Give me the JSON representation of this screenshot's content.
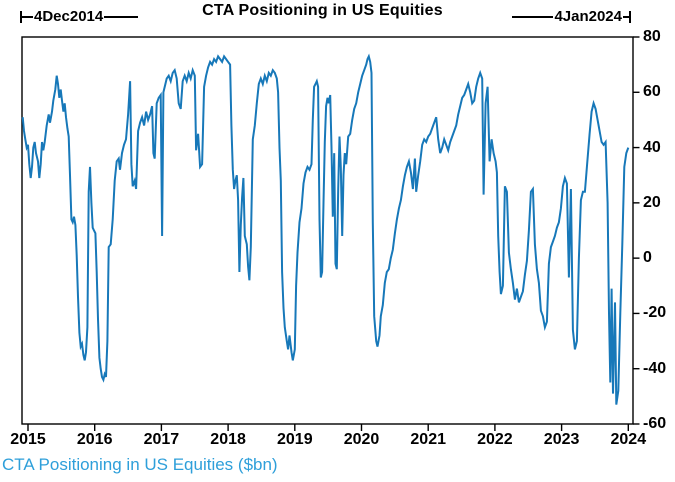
{
  "chart_data": {
    "type": "line",
    "title": "CTA Positioning in US Equities",
    "caption": "CTA Positioning in US Equities ($bn)",
    "range_annotations": {
      "start": {
        "label": "4Dec2014"
      },
      "end": {
        "label": "4Jan2024"
      }
    },
    "x_tick_labels": [
      "2015",
      "2016",
      "2017",
      "2018",
      "2019",
      "2020",
      "2021",
      "2022",
      "2023",
      "2024"
    ],
    "y_ticks": [
      80,
      60,
      40,
      20,
      0,
      -20,
      -40,
      -60
    ],
    "ylim": [
      -60,
      80
    ],
    "xlim_years": [
      2014.91,
      2024.07
    ],
    "ylabel_side": "right",
    "grid": false,
    "legend": "none",
    "line_color": "#1778b9",
    "axis_color": "#000000",
    "caption_color": "#2E9FDA",
    "series_name": "CTA Positioning in US Equities ($bn)",
    "points": [
      [
        2014.92,
        51
      ],
      [
        2014.94,
        46
      ],
      [
        2014.96,
        43
      ],
      [
        2014.98,
        40
      ],
      [
        2015.0,
        41
      ],
      [
        2015.02,
        34
      ],
      [
        2015.04,
        29
      ],
      [
        2015.06,
        33
      ],
      [
        2015.08,
        40
      ],
      [
        2015.1,
        42
      ],
      [
        2015.12,
        38
      ],
      [
        2015.15,
        35
      ],
      [
        2015.17,
        29
      ],
      [
        2015.19,
        34
      ],
      [
        2015.21,
        42
      ],
      [
        2015.23,
        39
      ],
      [
        2015.25,
        42
      ],
      [
        2015.28,
        48
      ],
      [
        2015.31,
        52
      ],
      [
        2015.33,
        49
      ],
      [
        2015.36,
        53
      ],
      [
        2015.38,
        57
      ],
      [
        2015.41,
        61
      ],
      [
        2015.43,
        66
      ],
      [
        2015.45,
        63
      ],
      [
        2015.47,
        58
      ],
      [
        2015.49,
        61
      ],
      [
        2015.51,
        57
      ],
      [
        2015.53,
        53
      ],
      [
        2015.55,
        56
      ],
      [
        2015.57,
        51
      ],
      [
        2015.59,
        47
      ],
      [
        2015.61,
        44
      ],
      [
        2015.63,
        30
      ],
      [
        2015.65,
        14
      ],
      [
        2015.67,
        13
      ],
      [
        2015.69,
        15
      ],
      [
        2015.71,
        12
      ],
      [
        2015.73,
        1
      ],
      [
        2015.75,
        -14
      ],
      [
        2015.77,
        -27
      ],
      [
        2015.79,
        -32
      ],
      [
        2015.81,
        -31
      ],
      [
        2015.83,
        -35
      ],
      [
        2015.85,
        -37
      ],
      [
        2015.87,
        -34
      ],
      [
        2015.89,
        -25
      ],
      [
        2015.91,
        24
      ],
      [
        2015.93,
        33
      ],
      [
        2015.95,
        20
      ],
      [
        2015.97,
        11
      ],
      [
        2015.99,
        10
      ],
      [
        2016.01,
        9
      ],
      [
        2016.03,
        -5
      ],
      [
        2016.05,
        -22
      ],
      [
        2016.07,
        -36
      ],
      [
        2016.09,
        -40
      ],
      [
        2016.11,
        -43
      ],
      [
        2016.13,
        -44
      ],
      [
        2016.15,
        -42
      ],
      [
        2016.17,
        -43
      ],
      [
        2016.19,
        -30
      ],
      [
        2016.21,
        4
      ],
      [
        2016.24,
        5
      ],
      [
        2016.27,
        14
      ],
      [
        2016.3,
        28
      ],
      [
        2016.33,
        35
      ],
      [
        2016.36,
        36
      ],
      [
        2016.38,
        32
      ],
      [
        2016.41,
        38
      ],
      [
        2016.44,
        41
      ],
      [
        2016.47,
        43
      ],
      [
        2016.5,
        52
      ],
      [
        2016.53,
        64
      ],
      [
        2016.55,
        34
      ],
      [
        2016.57,
        26
      ],
      [
        2016.6,
        28
      ],
      [
        2016.62,
        25
      ],
      [
        2016.65,
        46
      ],
      [
        2016.68,
        49
      ],
      [
        2016.71,
        51
      ],
      [
        2016.74,
        48
      ],
      [
        2016.77,
        53
      ],
      [
        2016.8,
        50
      ],
      [
        2016.83,
        52
      ],
      [
        2016.86,
        55
      ],
      [
        2016.88,
        38
      ],
      [
        2016.9,
        36
      ],
      [
        2016.93,
        56
      ],
      [
        2016.96,
        58
      ],
      [
        2016.99,
        59
      ],
      [
        2017.01,
        8
      ],
      [
        2017.03,
        60
      ],
      [
        2017.06,
        63
      ],
      [
        2017.08,
        65
      ],
      [
        2017.11,
        66
      ],
      [
        2017.14,
        64
      ],
      [
        2017.17,
        67
      ],
      [
        2017.2,
        68
      ],
      [
        2017.23,
        65
      ],
      [
        2017.26,
        56
      ],
      [
        2017.29,
        54
      ],
      [
        2017.32,
        64
      ],
      [
        2017.35,
        66
      ],
      [
        2017.38,
        64
      ],
      [
        2017.41,
        67
      ],
      [
        2017.44,
        65
      ],
      [
        2017.47,
        68
      ],
      [
        2017.5,
        66
      ],
      [
        2017.52,
        39
      ],
      [
        2017.55,
        45
      ],
      [
        2017.58,
        33
      ],
      [
        2017.61,
        34
      ],
      [
        2017.64,
        62
      ],
      [
        2017.67,
        66
      ],
      [
        2017.7,
        69
      ],
      [
        2017.73,
        71
      ],
      [
        2017.76,
        70
      ],
      [
        2017.79,
        72
      ],
      [
        2017.82,
        71
      ],
      [
        2017.85,
        73
      ],
      [
        2017.88,
        72
      ],
      [
        2017.91,
        71
      ],
      [
        2017.94,
        73
      ],
      [
        2017.97,
        72
      ],
      [
        2018.0,
        71
      ],
      [
        2018.03,
        70
      ],
      [
        2018.05,
        48
      ],
      [
        2018.07,
        32
      ],
      [
        2018.09,
        25
      ],
      [
        2018.11,
        28
      ],
      [
        2018.13,
        30
      ],
      [
        2018.15,
        21
      ],
      [
        2018.17,
        -5
      ],
      [
        2018.19,
        12
      ],
      [
        2018.21,
        22
      ],
      [
        2018.23,
        29
      ],
      [
        2018.25,
        8
      ],
      [
        2018.28,
        5
      ],
      [
        2018.3,
        -3
      ],
      [
        2018.32,
        -8
      ],
      [
        2018.34,
        4
      ],
      [
        2018.37,
        43
      ],
      [
        2018.4,
        48
      ],
      [
        2018.43,
        56
      ],
      [
        2018.46,
        63
      ],
      [
        2018.49,
        65
      ],
      [
        2018.52,
        63
      ],
      [
        2018.55,
        66
      ],
      [
        2018.58,
        64
      ],
      [
        2018.61,
        67
      ],
      [
        2018.64,
        66
      ],
      [
        2018.67,
        68
      ],
      [
        2018.7,
        67
      ],
      [
        2018.73,
        65
      ],
      [
        2018.75,
        60
      ],
      [
        2018.77,
        40
      ],
      [
        2018.79,
        28
      ],
      [
        2018.81,
        -5
      ],
      [
        2018.83,
        -18
      ],
      [
        2018.85,
        -25
      ],
      [
        2018.88,
        -30
      ],
      [
        2018.9,
        -33
      ],
      [
        2018.92,
        -28
      ],
      [
        2018.95,
        -34
      ],
      [
        2018.97,
        -37
      ],
      [
        2019.0,
        -33
      ],
      [
        2019.02,
        -10
      ],
      [
        2019.04,
        2
      ],
      [
        2019.07,
        13
      ],
      [
        2019.1,
        18
      ],
      [
        2019.13,
        27
      ],
      [
        2019.16,
        31
      ],
      [
        2019.19,
        33
      ],
      [
        2019.22,
        32
      ],
      [
        2019.25,
        34
      ],
      [
        2019.27,
        50
      ],
      [
        2019.29,
        62
      ],
      [
        2019.31,
        63
      ],
      [
        2019.33,
        64
      ],
      [
        2019.35,
        62
      ],
      [
        2019.37,
        14
      ],
      [
        2019.39,
        -7
      ],
      [
        2019.41,
        -5
      ],
      [
        2019.43,
        20
      ],
      [
        2019.45,
        42
      ],
      [
        2019.47,
        55
      ],
      [
        2019.49,
        58
      ],
      [
        2019.51,
        56
      ],
      [
        2019.53,
        59
      ],
      [
        2019.55,
        40
      ],
      [
        2019.57,
        15
      ],
      [
        2019.59,
        38
      ],
      [
        2019.61,
        -2
      ],
      [
        2019.63,
        -4
      ],
      [
        2019.65,
        25
      ],
      [
        2019.67,
        44
      ],
      [
        2019.69,
        33
      ],
      [
        2019.71,
        8
      ],
      [
        2019.73,
        30
      ],
      [
        2019.75,
        38
      ],
      [
        2019.77,
        34
      ],
      [
        2019.8,
        44
      ],
      [
        2019.83,
        45
      ],
      [
        2019.86,
        50
      ],
      [
        2019.89,
        54
      ],
      [
        2019.92,
        56
      ],
      [
        2019.95,
        60
      ],
      [
        2019.98,
        63
      ],
      [
        2020.01,
        66
      ],
      [
        2020.04,
        68
      ],
      [
        2020.07,
        70
      ],
      [
        2020.09,
        72
      ],
      [
        2020.11,
        73
      ],
      [
        2020.13,
        71
      ],
      [
        2020.15,
        67
      ],
      [
        2020.17,
        13
      ],
      [
        2020.19,
        -21
      ],
      [
        2020.22,
        -30
      ],
      [
        2020.24,
        -32
      ],
      [
        2020.27,
        -28
      ],
      [
        2020.29,
        -21
      ],
      [
        2020.32,
        -17
      ],
      [
        2020.35,
        -9
      ],
      [
        2020.38,
        -5
      ],
      [
        2020.41,
        -4
      ],
      [
        2020.44,
        0
      ],
      [
        2020.47,
        3
      ],
      [
        2020.5,
        9
      ],
      [
        2020.53,
        14
      ],
      [
        2020.56,
        18
      ],
      [
        2020.59,
        21
      ],
      [
        2020.62,
        26
      ],
      [
        2020.65,
        30
      ],
      [
        2020.68,
        33
      ],
      [
        2020.71,
        35
      ],
      [
        2020.74,
        31
      ],
      [
        2020.77,
        25
      ],
      [
        2020.8,
        36
      ],
      [
        2020.82,
        24
      ],
      [
        2020.85,
        30
      ],
      [
        2020.88,
        35
      ],
      [
        2020.91,
        41
      ],
      [
        2020.94,
        43
      ],
      [
        2020.97,
        42
      ],
      [
        2021.0,
        44
      ],
      [
        2021.03,
        45
      ],
      [
        2021.06,
        47
      ],
      [
        2021.09,
        49
      ],
      [
        2021.12,
        51
      ],
      [
        2021.15,
        43
      ],
      [
        2021.18,
        38
      ],
      [
        2021.21,
        40
      ],
      [
        2021.24,
        43
      ],
      [
        2021.27,
        41
      ],
      [
        2021.3,
        39
      ],
      [
        2021.33,
        42
      ],
      [
        2021.36,
        44
      ],
      [
        2021.39,
        46
      ],
      [
        2021.42,
        48
      ],
      [
        2021.45,
        52
      ],
      [
        2021.48,
        55
      ],
      [
        2021.51,
        58
      ],
      [
        2021.54,
        59
      ],
      [
        2021.57,
        61
      ],
      [
        2021.6,
        63
      ],
      [
        2021.63,
        60
      ],
      [
        2021.66,
        56
      ],
      [
        2021.69,
        57
      ],
      [
        2021.72,
        62
      ],
      [
        2021.75,
        65
      ],
      [
        2021.78,
        67
      ],
      [
        2021.81,
        65
      ],
      [
        2021.83,
        23
      ],
      [
        2021.86,
        56
      ],
      [
        2021.89,
        62
      ],
      [
        2021.92,
        35
      ],
      [
        2021.95,
        43
      ],
      [
        2021.98,
        38
      ],
      [
        2022.01,
        35
      ],
      [
        2022.03,
        31
      ],
      [
        2022.05,
        8
      ],
      [
        2022.07,
        -5
      ],
      [
        2022.09,
        -13
      ],
      [
        2022.12,
        -10
      ],
      [
        2022.15,
        26
      ],
      [
        2022.18,
        24
      ],
      [
        2022.21,
        2
      ],
      [
        2022.24,
        -4
      ],
      [
        2022.27,
        -9
      ],
      [
        2022.3,
        -15
      ],
      [
        2022.33,
        -11
      ],
      [
        2022.36,
        -16
      ],
      [
        2022.39,
        -14
      ],
      [
        2022.42,
        -12
      ],
      [
        2022.45,
        -6
      ],
      [
        2022.48,
        -1
      ],
      [
        2022.51,
        10
      ],
      [
        2022.54,
        24
      ],
      [
        2022.57,
        25
      ],
      [
        2022.6,
        5
      ],
      [
        2022.63,
        -4
      ],
      [
        2022.66,
        -9
      ],
      [
        2022.69,
        -19
      ],
      [
        2022.72,
        -21
      ],
      [
        2022.75,
        -25
      ],
      [
        2022.78,
        -23
      ],
      [
        2022.81,
        -2
      ],
      [
        2022.84,
        4
      ],
      [
        2022.87,
        6
      ],
      [
        2022.9,
        8
      ],
      [
        2022.93,
        11
      ],
      [
        2022.96,
        13
      ],
      [
        2022.99,
        18
      ],
      [
        2023.02,
        26
      ],
      [
        2023.05,
        29
      ],
      [
        2023.08,
        27
      ],
      [
        2023.11,
        -7
      ],
      [
        2023.14,
        25
      ],
      [
        2023.17,
        -26
      ],
      [
        2023.2,
        -33
      ],
      [
        2023.23,
        -30
      ],
      [
        2023.26,
        0
      ],
      [
        2023.29,
        21
      ],
      [
        2023.32,
        24
      ],
      [
        2023.35,
        24
      ],
      [
        2023.38,
        33
      ],
      [
        2023.42,
        45
      ],
      [
        2023.45,
        53
      ],
      [
        2023.48,
        56
      ],
      [
        2023.51,
        54
      ],
      [
        2023.54,
        50
      ],
      [
        2023.57,
        46
      ],
      [
        2023.6,
        42
      ],
      [
        2023.63,
        41
      ],
      [
        2023.66,
        42
      ],
      [
        2023.69,
        20
      ],
      [
        2023.71,
        -20
      ],
      [
        2023.73,
        -45
      ],
      [
        2023.75,
        -11
      ],
      [
        2023.77,
        -49
      ],
      [
        2023.8,
        -16
      ],
      [
        2023.82,
        -53
      ],
      [
        2023.85,
        -48
      ],
      [
        2023.88,
        -20
      ],
      [
        2023.91,
        5
      ],
      [
        2023.94,
        33
      ],
      [
        2023.97,
        38
      ],
      [
        2024.0,
        40
      ]
    ]
  }
}
